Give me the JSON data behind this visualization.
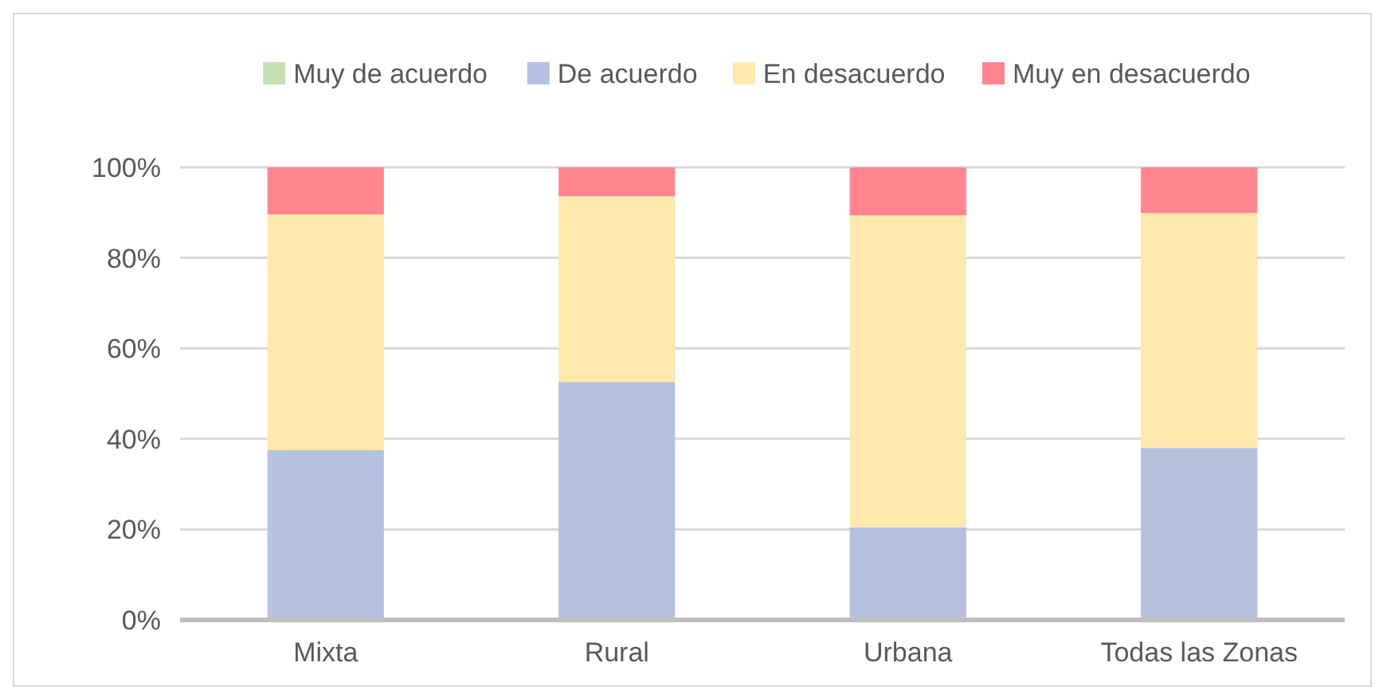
{
  "chart_data": {
    "type": "bar",
    "stacked": true,
    "categories": [
      "Mixta",
      "Rural",
      "Urbana",
      "Todas las Zonas"
    ],
    "series": [
      {
        "name": "Muy de acuerdo",
        "color": "#c5e0b4",
        "values": [
          0.3,
          0,
          0,
          0.2
        ]
      },
      {
        "name": "De acuerdo",
        "color": "#b4c2e0",
        "values": [
          37.2,
          52.6,
          20.5,
          37.8
        ]
      },
      {
        "name": "En desacuerdo",
        "color": "#ffe8ad",
        "values": [
          52.1,
          41.0,
          68.9,
          51.9
        ]
      },
      {
        "name": "Muy en desacuerdo",
        "color": "#ff8691",
        "values": [
          10.4,
          6.4,
          10.6,
          10.1
        ]
      }
    ],
    "ylim": [
      0,
      100
    ],
    "yticks": [
      {
        "value": 0,
        "label": "0%"
      },
      {
        "value": 20,
        "label": "20%"
      },
      {
        "value": 40,
        "label": "40%"
      },
      {
        "value": 60,
        "label": "60%"
      },
      {
        "value": 80,
        "label": "80%"
      },
      {
        "value": 100,
        "label": "100%"
      }
    ],
    "grid": "y",
    "legend": "top"
  }
}
